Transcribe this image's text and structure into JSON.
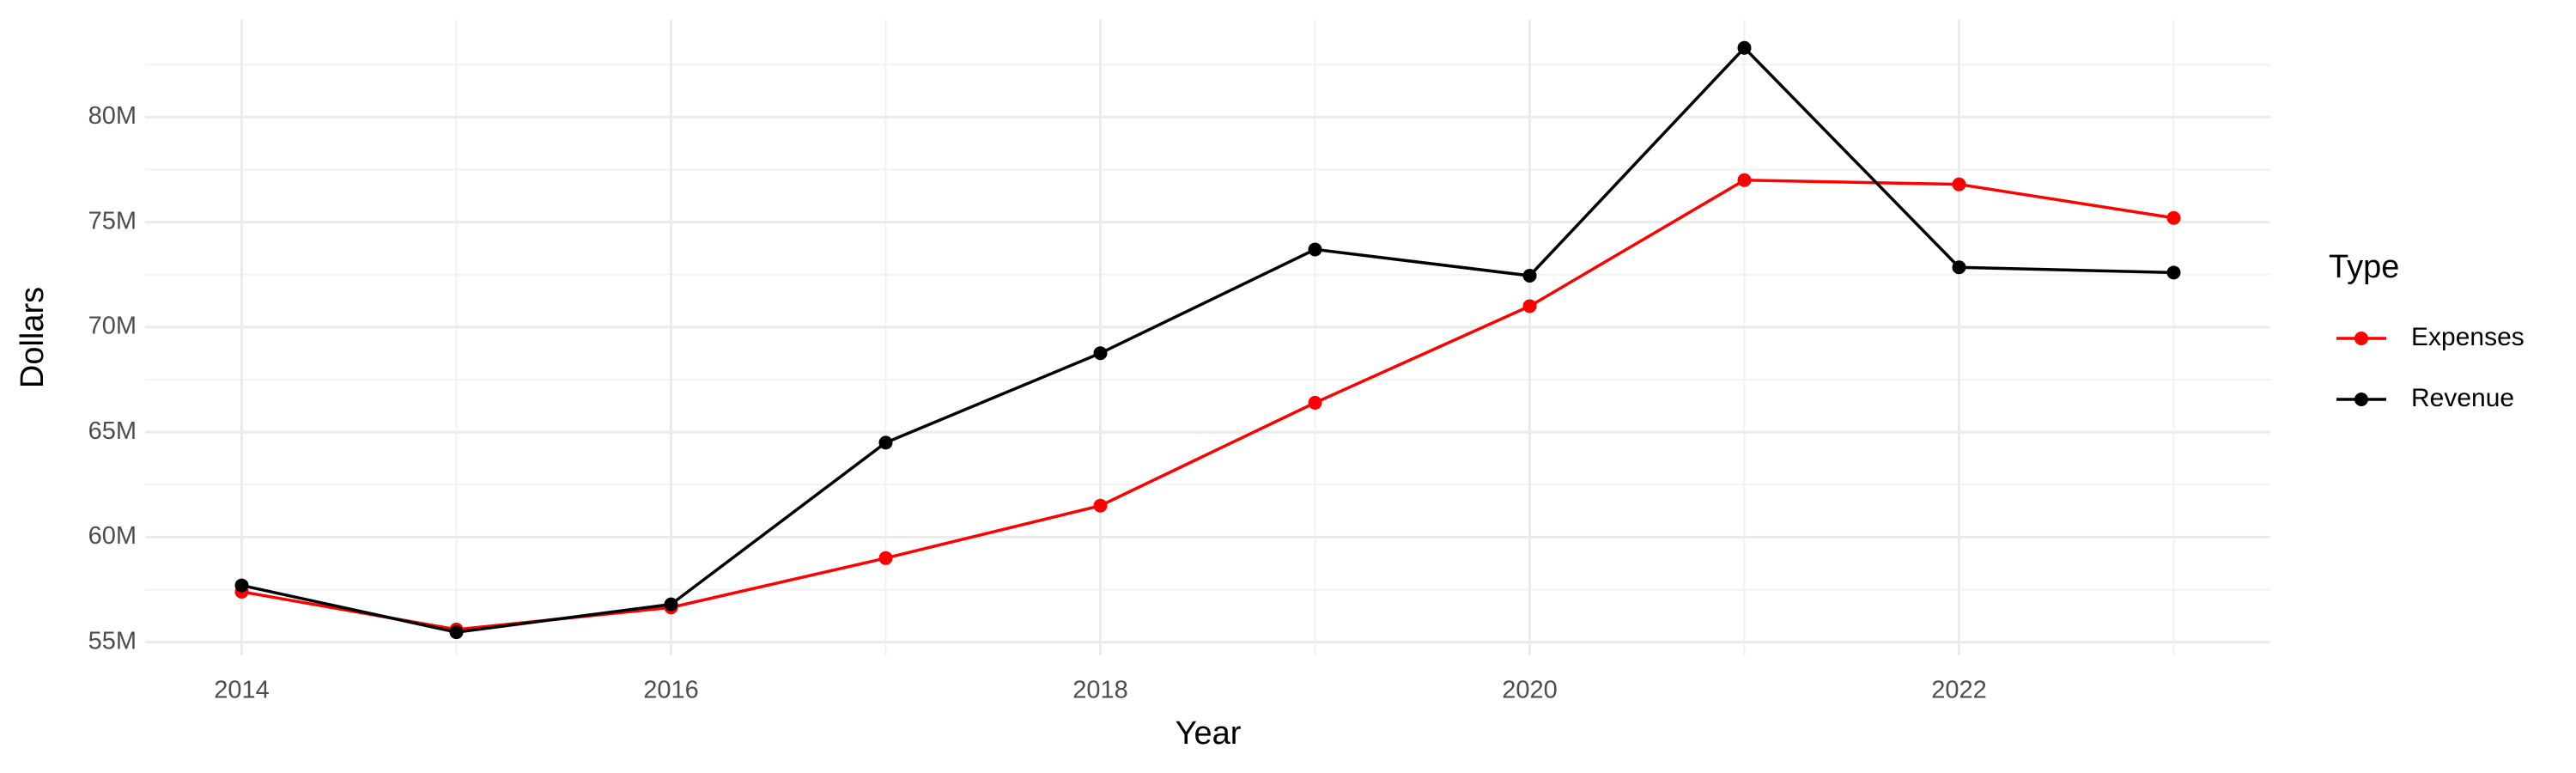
{
  "chart_data": {
    "type": "line",
    "xlabel": "Year",
    "ylabel": "Dollars",
    "legend_title": "Type",
    "x": [
      2014,
      2015,
      2016,
      2017,
      2018,
      2019,
      2020,
      2021,
      2022,
      2023
    ],
    "series": [
      {
        "name": "Expenses",
        "color": "#ff0000",
        "values": [
          57400000,
          55600000,
          56650000,
          59000000,
          61500000,
          66400000,
          71000000,
          77000000,
          76800000,
          75200000
        ]
      },
      {
        "name": "Revenue",
        "color": "#000000",
        "values": [
          57700000,
          55470000,
          56800000,
          64500000,
          68760000,
          73700000,
          72450000,
          83300000,
          72850000,
          72600000
        ]
      }
    ],
    "xlim": [
      2013.55,
      2023.45
    ],
    "xticks": [
      2014,
      2016,
      2018,
      2020,
      2022
    ],
    "ylim": [
      54370000,
      84640000
    ],
    "yticks": [
      {
        "value": 55000000,
        "label": "55M"
      },
      {
        "value": 60000000,
        "label": "60M"
      },
      {
        "value": 65000000,
        "label": "65M"
      },
      {
        "value": 70000000,
        "label": "70M"
      },
      {
        "value": 75000000,
        "label": "75M"
      },
      {
        "value": 80000000,
        "label": "80M"
      }
    ],
    "grid": true,
    "legend": "right"
  }
}
